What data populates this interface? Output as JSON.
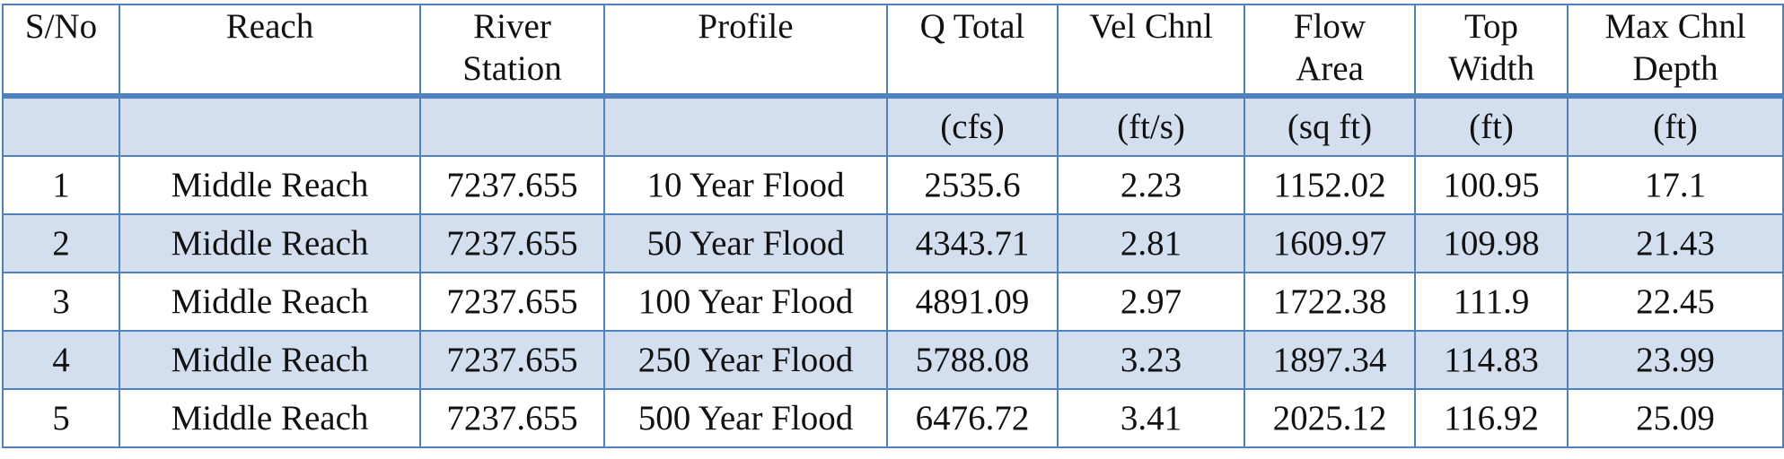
{
  "table": {
    "headers": [
      {
        "line1": "S/No",
        "line2": ""
      },
      {
        "line1": "Reach",
        "line2": ""
      },
      {
        "line1": "River",
        "line2": "Station"
      },
      {
        "line1": "Profile",
        "line2": ""
      },
      {
        "line1": "Q Total",
        "line2": ""
      },
      {
        "line1": "Vel Chnl",
        "line2": ""
      },
      {
        "line1": "Flow",
        "line2": "Area"
      },
      {
        "line1": "Top",
        "line2": "Width"
      },
      {
        "line1": "Max Chnl",
        "line2": "Depth"
      }
    ],
    "units": [
      "",
      "",
      "",
      "",
      "(cfs)",
      "(ft/s)",
      "(sq ft)",
      "(ft)",
      "(ft)"
    ],
    "rows": [
      [
        "1",
        "Middle Reach",
        "7237.655",
        "10 Year Flood",
        "2535.6",
        "2.23",
        "1152.02",
        "100.95",
        "17.1"
      ],
      [
        "2",
        "Middle Reach",
        "7237.655",
        "50 Year Flood",
        "4343.71",
        "2.81",
        "1609.97",
        "109.98",
        "21.43"
      ],
      [
        "3",
        "Middle Reach",
        "7237.655",
        "100 Year Flood",
        "4891.09",
        "2.97",
        "1722.38",
        "111.9",
        "22.45"
      ],
      [
        "4",
        "Middle Reach",
        "7237.655",
        "250 Year Flood",
        "5788.08",
        "3.23",
        "1897.34",
        "114.83",
        "23.99"
      ],
      [
        "5",
        "Middle Reach",
        "7237.655",
        "500 Year Flood",
        "6476.72",
        "3.41",
        "2025.12",
        "116.92",
        "25.09"
      ]
    ]
  },
  "colors": {
    "border": "#4f81bd",
    "band": "#d3dfee"
  }
}
